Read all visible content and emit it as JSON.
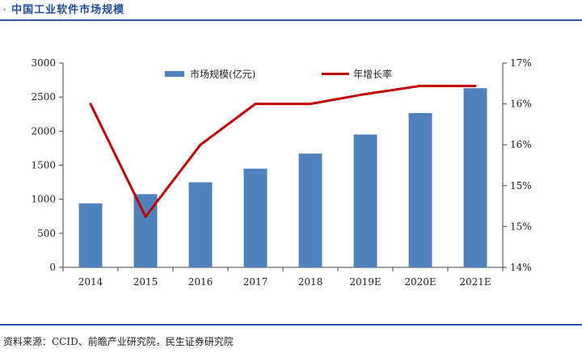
{
  "header": {
    "title": "中国工业软件市场规模",
    "bullet": "·"
  },
  "footer": {
    "source": "资料来源：CCID、前瞻产业研究院，民生证券研究院"
  },
  "colors": {
    "bar": "#4f81bd",
    "line": "#c00000",
    "rule": "#2f5597"
  },
  "chart_data": {
    "type": "bar+line",
    "categories": [
      "2014",
      "2015",
      "2016",
      "2017",
      "2018",
      "2019E",
      "2020E",
      "2021E"
    ],
    "series": [
      {
        "name": "市场规模(亿元)",
        "type": "bar",
        "axis": "left",
        "values": [
          940,
          1075,
          1250,
          1450,
          1670,
          1950,
          2265,
          2630
        ]
      },
      {
        "name": "年增长率",
        "type": "line",
        "axis": "right",
        "values": [
          16.0,
          14.62,
          15.5,
          16.0,
          16.0,
          16.12,
          16.22,
          16.22
        ]
      }
    ],
    "y_left": {
      "min": 0,
      "max": 3000,
      "ticks": [
        "0",
        "500",
        "1000",
        "1500",
        "2000",
        "2500",
        "3000"
      ]
    },
    "y_right": {
      "ticks": [
        {
          "v": 14.0,
          "label": "14%"
        },
        {
          "v": 14.5,
          "label": "15%"
        },
        {
          "v": 15.0,
          "label": "15%"
        },
        {
          "v": 15.5,
          "label": "16%"
        },
        {
          "v": 16.0,
          "label": "16%"
        },
        {
          "v": 16.5,
          "label": "17%"
        }
      ]
    },
    "legend": {
      "position": "top",
      "bar_label": "市场规模(亿元)",
      "line_label": "年增长率"
    },
    "grid": false
  }
}
